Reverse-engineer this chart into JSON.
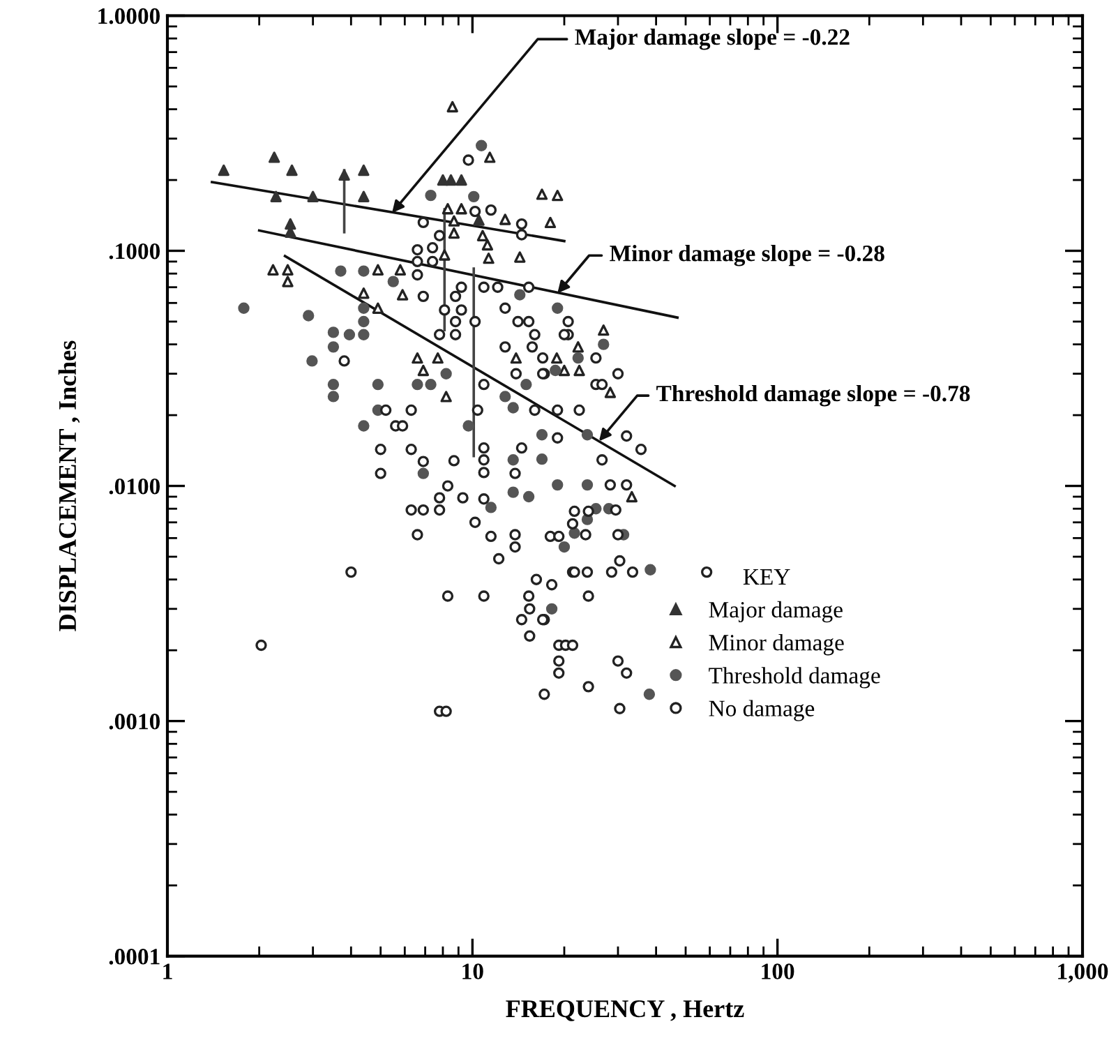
{
  "chart_data": {
    "type": "scatter",
    "xlabel": "FREQUENCY , Hertz",
    "ylabel": "DISPLACEMENT , Inches",
    "legend_title": "KEY",
    "legend": "lower right",
    "log": "xy",
    "grid": false,
    "xlim": [
      1,
      1000
    ],
    "ylim": [
      0.0001,
      1
    ],
    "xticks": [
      1,
      10,
      100,
      {
        "value": 1000,
        "label": "1,000"
      }
    ],
    "yticks": [
      {
        "value": 0.0001,
        "label": ".0001"
      },
      {
        "value": 0.001,
        "label": ".0010"
      },
      {
        "value": 0.01,
        "label": ".0100"
      },
      {
        "value": 0.1,
        "label": ".1000"
      },
      {
        "value": 1,
        "label": "1.0000"
      }
    ],
    "series": [
      {
        "name": "Major damage",
        "marker": "triangle",
        "color": "#333333",
        "x": [
          1.53,
          2.24,
          2.56,
          3.8,
          4.4,
          2.27,
          3.0,
          4.4,
          2.53,
          2.53,
          8.5,
          9.2,
          8.0,
          10.5
        ],
        "values": [
          0.22,
          0.25,
          0.22,
          0.21,
          0.22,
          0.17,
          0.17,
          0.17,
          0.13,
          0.12,
          0.2,
          0.2,
          0.2,
          0.135
        ]
      },
      {
        "name": "Minor damage",
        "marker": "triangle",
        "color": "#222222",
        "x": [
          8.6,
          11.4,
          16.9,
          19.0,
          12.8,
          18.0,
          14.3,
          2.22,
          2.48,
          2.48,
          4.9,
          5.8,
          4.4,
          5.9,
          4.9,
          8.3,
          8.7,
          8.7,
          8.1,
          10.8,
          11.2,
          11.3,
          9.2,
          26.9,
          22.2,
          18.9,
          20,
          22.4,
          13.9,
          28.3,
          33.3,
          7.7,
          6.9,
          8.2,
          6.6
        ],
        "values": [
          0.41,
          0.25,
          0.174,
          0.172,
          0.136,
          0.132,
          0.094,
          0.083,
          0.083,
          0.074,
          0.083,
          0.083,
          0.066,
          0.065,
          0.057,
          0.151,
          0.134,
          0.119,
          0.096,
          0.116,
          0.106,
          0.093,
          0.151,
          0.046,
          0.039,
          0.035,
          0.031,
          0.031,
          0.035,
          0.025,
          0.009,
          0.035,
          0.031,
          0.024,
          0.035
        ]
      },
      {
        "name": "Threshold damage",
        "marker": "circle",
        "color": "#555555",
        "x": [
          10.7,
          7.3,
          10.1,
          3.7,
          4.4,
          5.5,
          4.4,
          4.4,
          4.4,
          3.5,
          3.95,
          2.9,
          1.78,
          14.3,
          19,
          2.98,
          3.5,
          3.5,
          3.5,
          4.9,
          4.4,
          4.9,
          6.6,
          7.3,
          8.2,
          6.9,
          12.8,
          13.6,
          16.9,
          16.9,
          13.6,
          19,
          15.3,
          11.5,
          9.7,
          13.6,
          20,
          18.2,
          23.8,
          28,
          25.4,
          23.8,
          21.6,
          31.3,
          38.3,
          38,
          26.9,
          22.2,
          18.7,
          15,
          23.8
        ],
        "values": [
          0.28,
          0.172,
          0.17,
          0.082,
          0.082,
          0.074,
          0.057,
          0.05,
          0.044,
          0.045,
          0.044,
          0.053,
          0.057,
          0.065,
          0.057,
          0.034,
          0.039,
          0.027,
          0.024,
          0.027,
          0.018,
          0.021,
          0.027,
          0.027,
          0.03,
          0.0113,
          0.024,
          0.0215,
          0.0165,
          0.013,
          0.0129,
          0.0101,
          0.009,
          0.0081,
          0.018,
          0.0094,
          0.0055,
          0.003,
          0.0101,
          0.008,
          0.008,
          0.0072,
          0.0063,
          0.0062,
          0.0044,
          0.0013,
          0.04,
          0.035,
          0.031,
          0.027,
          0.0165
        ]
      },
      {
        "name": "No damage",
        "marker": "circle",
        "color": "#222222",
        "x": [
          9.7,
          6.9,
          10.2,
          11.5,
          14.5,
          14.5,
          6.6,
          7.4,
          6.6,
          7.4,
          7.8,
          6.6,
          6.9,
          8.8,
          9.2,
          9.2,
          10.9,
          12.1,
          15.3,
          12.8,
          14.1,
          15.3,
          20.6,
          20.6,
          16,
          7.8,
          8.8,
          12.8,
          15.7,
          8.8,
          10.2,
          8.1,
          3.8,
          5.2,
          6.3,
          5.6,
          5.9,
          5.0,
          6.3,
          5.0,
          6.9,
          8.7,
          8.3,
          7.8,
          9.3,
          6.3,
          6.9,
          7.8,
          6.6,
          10.2,
          10.9,
          11.5,
          13.8,
          13.8,
          12.2,
          10.9,
          10.9,
          13.8,
          14.5,
          10.9,
          10.4,
          10.9,
          16,
          19,
          19,
          17.2,
          13.9,
          16.2,
          21.3,
          18.2,
          4.0,
          8.3,
          10.9,
          15.3,
          15.4,
          14.5,
          17.2,
          15.4,
          2.03,
          7.8,
          8.2,
          17.2,
          19.2,
          20.2,
          21.3,
          19.2,
          19.2,
          26.6,
          35.7,
          28.3,
          32,
          29.5,
          24,
          21.6,
          21.3,
          23.5,
          18,
          19.2,
          30,
          30.4,
          21.6,
          23.8,
          28.6,
          33.5,
          58.6,
          24,
          17,
          30,
          32,
          24,
          30.4,
          20,
          25.4,
          30,
          17,
          17,
          25.4,
          26.6,
          22.4,
          32
        ],
        "values": [
          0.243,
          0.132,
          0.147,
          0.149,
          0.13,
          0.117,
          0.101,
          0.103,
          0.09,
          0.09,
          0.116,
          0.079,
          0.064,
          0.064,
          0.07,
          0.056,
          0.07,
          0.07,
          0.07,
          0.057,
          0.05,
          0.05,
          0.05,
          0.044,
          0.044,
          0.044,
          0.044,
          0.039,
          0.039,
          0.05,
          0.05,
          0.056,
          0.034,
          0.021,
          0.021,
          0.018,
          0.018,
          0.0143,
          0.0143,
          0.0113,
          0.0127,
          0.0128,
          0.01,
          0.0089,
          0.0089,
          0.0079,
          0.0079,
          0.0079,
          0.0062,
          0.007,
          0.0088,
          0.0061,
          0.0062,
          0.0055,
          0.0049,
          0.0114,
          0.0129,
          0.0113,
          0.0145,
          0.0145,
          0.021,
          0.027,
          0.021,
          0.016,
          0.021,
          0.03,
          0.03,
          0.004,
          0.0043,
          0.0038,
          0.0043,
          0.0034,
          0.0034,
          0.0034,
          0.003,
          0.0027,
          0.0027,
          0.0023,
          0.0021,
          0.0011,
          0.0011,
          0.0013,
          0.0021,
          0.0021,
          0.0021,
          0.0018,
          0.0016,
          0.0129,
          0.0143,
          0.0101,
          0.0101,
          0.0079,
          0.0078,
          0.0078,
          0.0069,
          0.0062,
          0.0061,
          0.0061,
          0.0062,
          0.0048,
          0.0043,
          0.0043,
          0.0043,
          0.0043,
          0.0043,
          0.0034,
          0.0027,
          0.0018,
          0.0016,
          0.0014,
          0.00113,
          0.044,
          0.035,
          0.03,
          0.035,
          0.03,
          0.027,
          0.027,
          0.021,
          0.0163
        ]
      },
      {
        "type": "line",
        "color": "#111111",
        "x": [
          1.4,
          20
        ],
        "values": [
          0.196,
          0.11
        ]
      },
      {
        "type": "line",
        "color": "#111111",
        "x": [
          2.0,
          47
        ],
        "values": [
          0.122,
          0.052
        ]
      },
      {
        "type": "line",
        "color": "#111111",
        "x": [
          2.43,
          46
        ],
        "values": [
          0.095,
          0.01
        ]
      },
      {
        "type": "line",
        "color": "#444444",
        "x": [
          3.8,
          3.8
        ],
        "values": [
          0.12,
          0.22
        ]
      },
      {
        "type": "line",
        "color": "#444444",
        "x": [
          8.1,
          8.1
        ],
        "values": [
          0.046,
          0.15
        ]
      },
      {
        "type": "line",
        "color": "#444444",
        "x": [
          10.1,
          10.1
        ],
        "values": [
          0.0134,
          0.084
        ]
      }
    ],
    "annotations": [
      {
        "text": "Major damage slope = -0.22",
        "x": 5.45,
        "y": 0.145
      },
      {
        "text": "Minor damage slope = -0.28",
        "x": 19,
        "y": 0.066
      },
      {
        "text": "Threshold damage slope = -0.78",
        "x": 26,
        "y": 0.0155
      }
    ]
  }
}
